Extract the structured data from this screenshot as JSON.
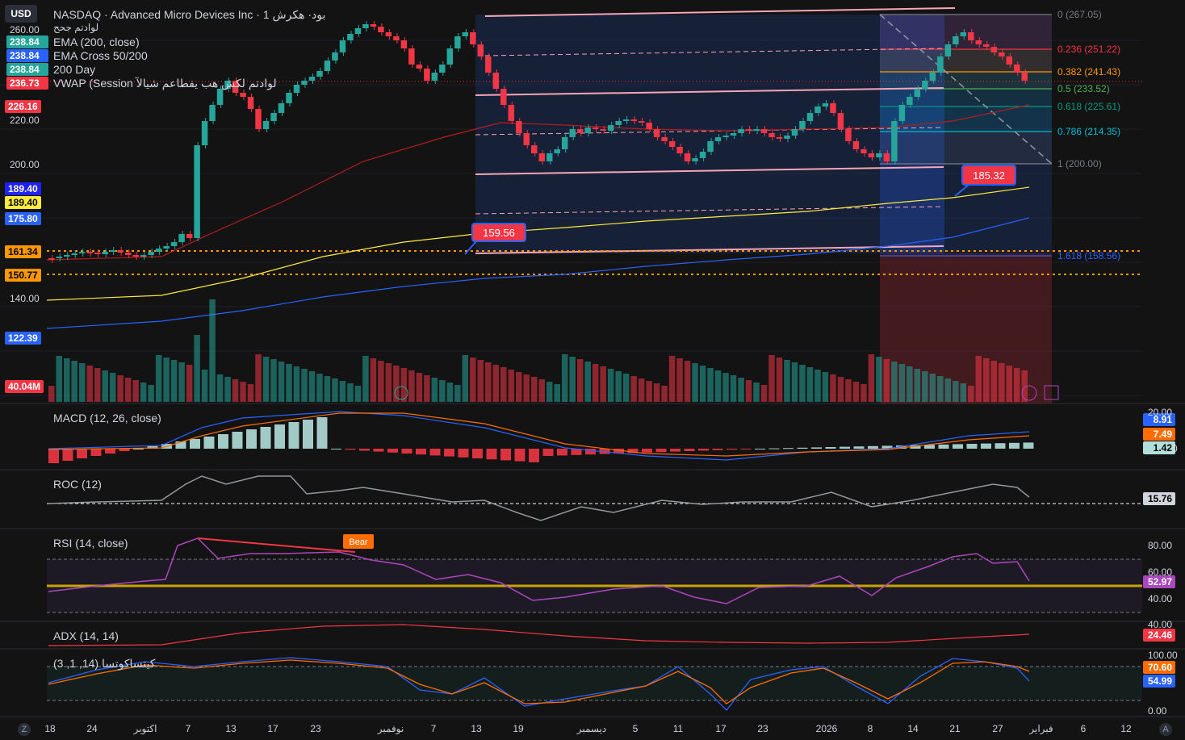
{
  "header": {
    "currency": "USD",
    "title": "NASDAQ · Advanced Micro Devices Inc · 1 بود· هکرش",
    "subtitle": "لوادتم جحح",
    "studies": [
      {
        "value": "238.84",
        "label": "EMA (200, close)",
        "color": "#26a69a"
      },
      {
        "value": "238.84",
        "label": "EMA Cross 50/200",
        "color": "#2962ff"
      },
      {
        "value": "238.84",
        "label": "200 Day",
        "color": "#26a69a"
      },
      {
        "value": "236.73",
        "label": "VWAP (Session لوادتم لکش هب یفطاعم شیالآ",
        "color": "#f23645"
      }
    ]
  },
  "price_axis": {
    "ticks": [
      "260.00",
      "220.00",
      "200.00",
      "140.00"
    ],
    "tags": [
      {
        "value": "226.16",
        "bg": "#f23645",
        "fg": "#ffffff"
      },
      {
        "value": "189.40",
        "bg": "#1e22ff",
        "fg": "#ffffff"
      },
      {
        "value": "189.40",
        "bg": "#ffeb3b",
        "fg": "#000000"
      },
      {
        "value": "175.80",
        "bg": "#2962ff",
        "fg": "#ffffff"
      },
      {
        "value": "161.34",
        "bg": "#ff9800",
        "fg": "#000000"
      },
      {
        "value": "150.77",
        "bg": "#ff9800",
        "fg": "#000000"
      },
      {
        "value": "122.39",
        "bg": "#2962ff",
        "fg": "#ffffff"
      },
      {
        "value": "40.04M",
        "bg": "#f23645",
        "fg": "#ffffff"
      }
    ]
  },
  "fib": [
    {
      "label": "0 (267.05)",
      "color": "#787b86"
    },
    {
      "label": "0.236 (251.22)",
      "color": "#f23645"
    },
    {
      "label": "0.382 (241.43)",
      "color": "#ff9800"
    },
    {
      "label": "0.5 (233.52)",
      "color": "#4caf50"
    },
    {
      "label": "0.618 (225.61)",
      "color": "#089981"
    },
    {
      "label": "0.786 (214.35)",
      "color": "#00bcd4"
    },
    {
      "label": "1 (200.00)",
      "color": "#787b86"
    },
    {
      "label": "1.618 (158.56)",
      "color": "#2962ff"
    }
  ],
  "callouts": [
    {
      "value": "159.56"
    },
    {
      "value": "185.32"
    }
  ],
  "macd": {
    "title": "MACD (12, 26, close)",
    "axis": "20.00",
    "zero": "0",
    "tags": [
      {
        "value": "8.91",
        "bg": "#2962ff",
        "fg": "#ffffff"
      },
      {
        "value": "7.49",
        "bg": "#ff6d00",
        "fg": "#ffffff"
      },
      {
        "value": "1.42",
        "bg": "#b2dfdb",
        "fg": "#000000"
      }
    ]
  },
  "roc": {
    "title": "ROC (12)",
    "tag": "15.76"
  },
  "rsi": {
    "title": "RSI (14, close)",
    "ticks": [
      "80.00",
      "60.00",
      "40.00"
    ],
    "tag": "52.97",
    "bear": "Bear"
  },
  "adx": {
    "title": "ADX (14, 14)",
    "axis": "40.00",
    "tag": "24.46"
  },
  "stoch": {
    "title": "کیتساکوتسا (14, 1, 3)",
    "ticks": [
      "100.00",
      "0.00"
    ],
    "tags": [
      {
        "value": "70.60",
        "bg": "#ff6d00"
      },
      {
        "value": "54.99",
        "bg": "#2962ff"
      }
    ]
  },
  "time_axis": [
    "18",
    "24",
    "اکتوبر",
    "7",
    "13",
    "17",
    "23",
    "نوفمبر",
    "7",
    "13",
    "19",
    "دیسمبر",
    "5",
    "11",
    "17",
    "23",
    "2026",
    "8",
    "14",
    "21",
    "27",
    "فبراير",
    "6",
    "12"
  ],
  "icons": {
    "left": "Z",
    "right": "A"
  }
}
